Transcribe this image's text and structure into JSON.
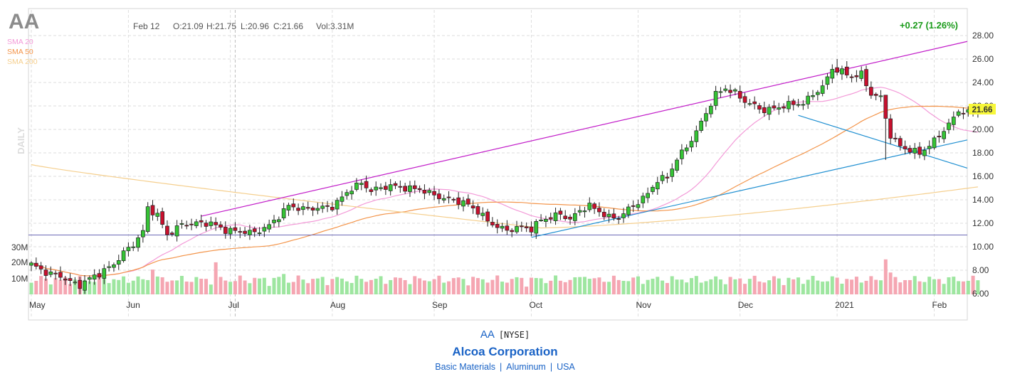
{
  "header": {
    "symbol": "AA",
    "date": "Feb 12",
    "open": "O:21.09",
    "high": "H:21.75",
    "low": "L:20.96",
    "close": "C:21.66",
    "volume": "Vol:3.31M",
    "change": "+0.27 (1.26%)",
    "period": "DAILY",
    "last_price_badge": "21.66"
  },
  "legend": [
    {
      "label": "SMA 20",
      "color": "#f39ad8"
    },
    {
      "label": "SMA 50",
      "color": "#f3954b"
    },
    {
      "label": "SMA 200",
      "color": "#f5cf8e"
    }
  ],
  "footer": {
    "symbol": "AA",
    "exchange": "[NYSE]",
    "company": "Alcoa Corporation",
    "sector": "Basic Materials",
    "industry": "Aluminum",
    "country": "USA"
  },
  "colors": {
    "up": "#35c435",
    "down": "#c8102e",
    "vol_up": "#9ee6a0",
    "vol_down": "#f5a6b2",
    "channel": "#c21ec9",
    "trend": "#1f8fd1",
    "hline": "#6a67b5",
    "change": "#1a9b1a",
    "badge": "#f7f73a"
  },
  "chart_data": {
    "type": "candlestick",
    "y_axis": {
      "min": 6,
      "max": 28,
      "ticks": [
        "28.00",
        "26.00",
        "24.00",
        "22.00",
        "20.00",
        "18.00",
        "16.00",
        "14.00",
        "12.00",
        "10.00",
        "8.00",
        "6.00"
      ],
      "position": "right"
    },
    "volume_axis": {
      "ticks": [
        "30M",
        "20M",
        "10M"
      ]
    },
    "x_axis": {
      "months": [
        "May",
        "Jun",
        "Jul",
        "Aug",
        "Sep",
        "Oct",
        "Nov",
        "Dec",
        "2021",
        "Feb"
      ],
      "month_start_index": [
        0,
        20,
        41,
        62,
        83,
        103,
        125,
        146,
        166,
        186
      ]
    },
    "price_anchors": [
      [
        0,
        8.5
      ],
      [
        3,
        7.8
      ],
      [
        6,
        7.5
      ],
      [
        8,
        7.0
      ],
      [
        10,
        6.7
      ],
      [
        12,
        7.3
      ],
      [
        14,
        7.7
      ],
      [
        17,
        8.5
      ],
      [
        19,
        9.5
      ],
      [
        21,
        10.2
      ],
      [
        23,
        11.3
      ],
      [
        24,
        13.3
      ],
      [
        26,
        12.7
      ],
      [
        28,
        11.0
      ],
      [
        31,
        11.9
      ],
      [
        34,
        12.0
      ],
      [
        37,
        12.0
      ],
      [
        40,
        11.4
      ],
      [
        43,
        11.3
      ],
      [
        46,
        11.2
      ],
      [
        49,
        11.8
      ],
      [
        51,
        12.6
      ],
      [
        53,
        13.5
      ],
      [
        56,
        13.2
      ],
      [
        59,
        13.3
      ],
      [
        62,
        13.4
      ],
      [
        64,
        14.2
      ],
      [
        66,
        15.0
      ],
      [
        68,
        15.4
      ],
      [
        70,
        14.8
      ],
      [
        72,
        15.0
      ],
      [
        74,
        15.2
      ],
      [
        77,
        15.0
      ],
      [
        80,
        14.9
      ],
      [
        83,
        14.4
      ],
      [
        85,
        14.1
      ],
      [
        87,
        14.0
      ],
      [
        90,
        13.6
      ],
      [
        92,
        13.0
      ],
      [
        94,
        12.2
      ],
      [
        96,
        11.7
      ],
      [
        98,
        11.4
      ],
      [
        101,
        11.7
      ],
      [
        103,
        11.5
      ],
      [
        105,
        12.3
      ],
      [
        107,
        12.5
      ],
      [
        109,
        12.8
      ],
      [
        111,
        12.3
      ],
      [
        113,
        13.1
      ],
      [
        115,
        13.5
      ],
      [
        117,
        13.0
      ],
      [
        119,
        12.5
      ],
      [
        121,
        12.5
      ],
      [
        123,
        13.2
      ],
      [
        125,
        13.8
      ],
      [
        127,
        14.5
      ],
      [
        129,
        15.7
      ],
      [
        131,
        15.9
      ],
      [
        133,
        17.5
      ],
      [
        135,
        18.5
      ],
      [
        137,
        19.8
      ],
      [
        139,
        21.4
      ],
      [
        141,
        23.0
      ],
      [
        143,
        23.5
      ],
      [
        145,
        23.1
      ],
      [
        147,
        22.4
      ],
      [
        149,
        22.0
      ],
      [
        151,
        21.6
      ],
      [
        153,
        21.8
      ],
      [
        155,
        22.0
      ],
      [
        157,
        22.2
      ],
      [
        159,
        22.2
      ],
      [
        161,
        23.0
      ],
      [
        163,
        23.6
      ],
      [
        165,
        25.2
      ],
      [
        167,
        24.9
      ],
      [
        169,
        24.5
      ],
      [
        171,
        24.7
      ],
      [
        173,
        23.0
      ],
      [
        175,
        22.7
      ],
      [
        177,
        19.4
      ],
      [
        179,
        18.6
      ],
      [
        181,
        18.2
      ],
      [
        183,
        18.0
      ],
      [
        185,
        18.6
      ],
      [
        187,
        19.5
      ],
      [
        189,
        20.4
      ],
      [
        191,
        21.6
      ],
      [
        193,
        21.4
      ],
      [
        195,
        21.66
      ]
    ],
    "volume_pattern": "daily volume bars roughly 3M-12M with spikes near 20M-30M",
    "overlays": [
      "SMA 20",
      "SMA 50",
      "SMA 200",
      "upper channel line",
      "two trend lines",
      "horizontal line at 11.00"
    ]
  }
}
